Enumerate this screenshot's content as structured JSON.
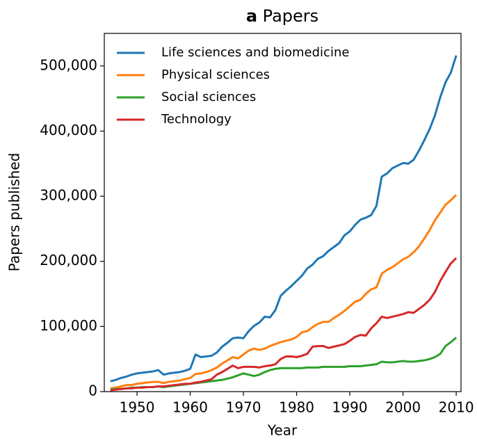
{
  "chart_data": {
    "type": "line",
    "panel_label": "a",
    "title": "Papers",
    "x_label": "Year",
    "y_label": "Papers published",
    "legend": "upper left",
    "xlim": [
      1943.85,
      2010.9
    ],
    "xticks": [
      1950,
      1960,
      1970,
      1980,
      1990,
      2000,
      2010
    ],
    "ylim": [
      0,
      550000
    ],
    "yticks": [
      0,
      {
        "value": 100000,
        "label": "100,000"
      },
      {
        "value": 200000,
        "label": "200,000"
      },
      {
        "value": 300000,
        "label": "300,000"
      },
      {
        "value": 400000,
        "label": "400,000"
      },
      {
        "value": 500000,
        "label": "500,000"
      }
    ],
    "x": [
      1945,
      1946,
      1947,
      1948,
      1949,
      1950,
      1951,
      1952,
      1953,
      1954,
      1955,
      1956,
      1957,
      1958,
      1959,
      1960,
      1961,
      1962,
      1963,
      1964,
      1965,
      1966,
      1967,
      1968,
      1969,
      1970,
      1971,
      1972,
      1973,
      1974,
      1975,
      1976,
      1977,
      1978,
      1979,
      1980,
      1981,
      1982,
      1983,
      1984,
      1985,
      1986,
      1987,
      1988,
      1989,
      1990,
      1991,
      1992,
      1993,
      1994,
      1995,
      1996,
      1997,
      1998,
      1999,
      2000,
      2001,
      2002,
      2003,
      2004,
      2005,
      2006,
      2007,
      2008,
      2009,
      2010
    ],
    "series": [
      {
        "name": "Life sciences and biomedicine",
        "color": "#1f77b4",
        "values": [
          16000,
          18000,
          21000,
          23000,
          26000,
          28000,
          29000,
          30000,
          31000,
          33000,
          26000,
          28000,
          29000,
          30000,
          32000,
          35000,
          57000,
          53000,
          54000,
          55000,
          60000,
          69000,
          75000,
          82000,
          83000,
          82000,
          93000,
          101000,
          106000,
          115000,
          114000,
          125000,
          147000,
          155000,
          162000,
          170000,
          178000,
          189000,
          195000,
          204000,
          208000,
          216000,
          222000,
          228000,
          240000,
          246000,
          256000,
          264000,
          267000,
          271000,
          285000,
          330000,
          335000,
          343000,
          347000,
          351000,
          350000,
          356000,
          370000,
          386000,
          403000,
          424000,
          452000,
          475000,
          490000,
          516000
        ]
      },
      {
        "name": "Physical sciences",
        "color": "#ff7f0e",
        "values": [
          5000,
          6000,
          8000,
          10000,
          10000,
          12000,
          13000,
          14000,
          15000,
          15000,
          13000,
          15000,
          16000,
          17000,
          19000,
          21000,
          27000,
          28000,
          30000,
          33000,
          37000,
          43000,
          48000,
          53000,
          51000,
          57000,
          63000,
          66000,
          64000,
          66000,
          70000,
          73000,
          76000,
          78000,
          80000,
          84000,
          91000,
          93000,
          99000,
          104000,
          107000,
          107000,
          113000,
          118000,
          124000,
          131000,
          138000,
          141000,
          150000,
          157000,
          160000,
          181000,
          187000,
          191000,
          197000,
          203000,
          207000,
          214000,
          223000,
          235000,
          248000,
          263000,
          275000,
          287000,
          294000,
          302000
        ]
      },
      {
        "name": "Social sciences",
        "color": "#2ca02c",
        "values": [
          3000,
          4000,
          4000,
          5000,
          6000,
          6000,
          7000,
          7000,
          7000,
          8000,
          7000,
          8000,
          9000,
          10000,
          11000,
          12000,
          13000,
          14000,
          15000,
          16000,
          17000,
          18000,
          20000,
          22000,
          25000,
          28000,
          26000,
          24000,
          26000,
          30000,
          33000,
          35000,
          36000,
          36000,
          36000,
          36000,
          36000,
          37000,
          37000,
          37000,
          38000,
          38000,
          38000,
          38000,
          38000,
          39000,
          39000,
          39000,
          40000,
          41000,
          42000,
          46000,
          45000,
          45000,
          46000,
          47000,
          46000,
          46000,
          47000,
          48000,
          50000,
          53000,
          58000,
          70000,
          76000,
          83000
        ]
      },
      {
        "name": "Technology",
        "color": "#d62728",
        "values": [
          2000,
          3000,
          4000,
          5000,
          5000,
          6000,
          6000,
          7000,
          7000,
          8000,
          8000,
          9000,
          10000,
          11000,
          12000,
          12000,
          14000,
          15000,
          17000,
          19000,
          26000,
          30000,
          35000,
          40000,
          36000,
          38000,
          38000,
          38000,
          37000,
          39000,
          40000,
          42000,
          50000,
          54000,
          54000,
          53000,
          55000,
          58000,
          69000,
          70000,
          70000,
          67000,
          69000,
          71000,
          73000,
          78000,
          84000,
          87000,
          86000,
          97000,
          105000,
          115000,
          113000,
          115000,
          117000,
          119000,
          122000,
          121000,
          127000,
          133000,
          141000,
          153000,
          170000,
          184000,
          197000,
          205000
        ]
      }
    ]
  }
}
